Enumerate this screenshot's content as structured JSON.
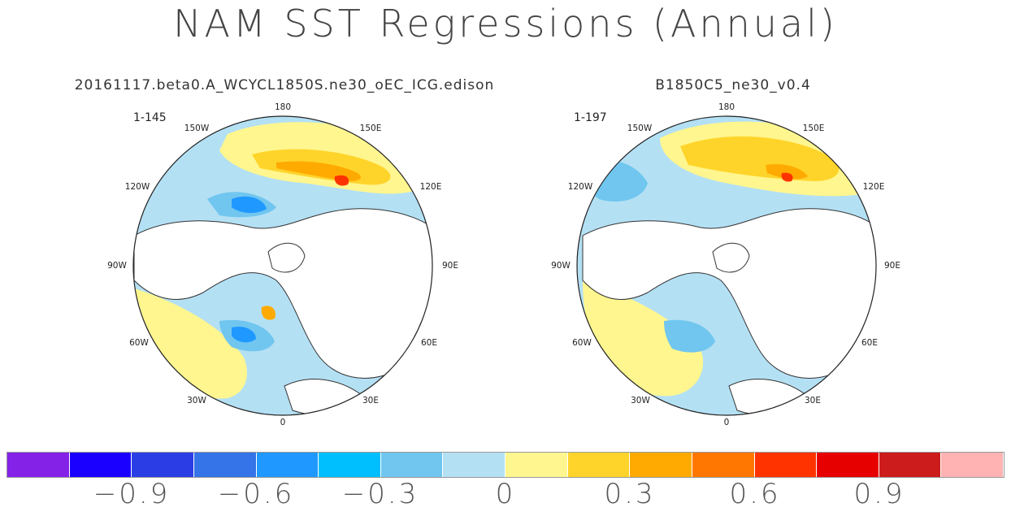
{
  "title": "NAM SST Regressions (Annual)",
  "panels": [
    {
      "title": "20161117.beta0.A_WCYCL1850S.ne30_oEC_ICG.edison",
      "years": "1-145"
    },
    {
      "title": "B1850C5_ne30_v0.4",
      "years": "1-197"
    }
  ],
  "longitude_labels": [
    "180",
    "150W",
    "150E",
    "120W",
    "120E",
    "90W",
    "90E",
    "60W",
    "60E",
    "30W",
    "30E",
    "0"
  ],
  "colorbar": {
    "colors": [
      "#8522e8",
      "#1a00ff",
      "#2b3ee6",
      "#3473e8",
      "#1f99ff",
      "#00bfff",
      "#70c6ef",
      "#b4e0f4",
      "#fff68f",
      "#ffd42a",
      "#ffaa00",
      "#ff7700",
      "#ff3300",
      "#e60000",
      "#cd1c1c",
      "#ffb3b3"
    ],
    "labels": [
      "−0.9",
      "−0.6",
      "−0.3",
      "0",
      "0.3",
      "0.6",
      "0.9"
    ]
  },
  "map_colors": {
    "land": "#ffffff",
    "coast": "#333333",
    "neutral_neg": "#b4e0f4",
    "neutral_pos": "#fff68f",
    "mid_pos": "#ffd42a",
    "strong_pos": "#ffaa00",
    "very_strong_pos": "#ff3300",
    "mid_neg": "#70c6ef",
    "strong_neg": "#1f99ff"
  }
}
